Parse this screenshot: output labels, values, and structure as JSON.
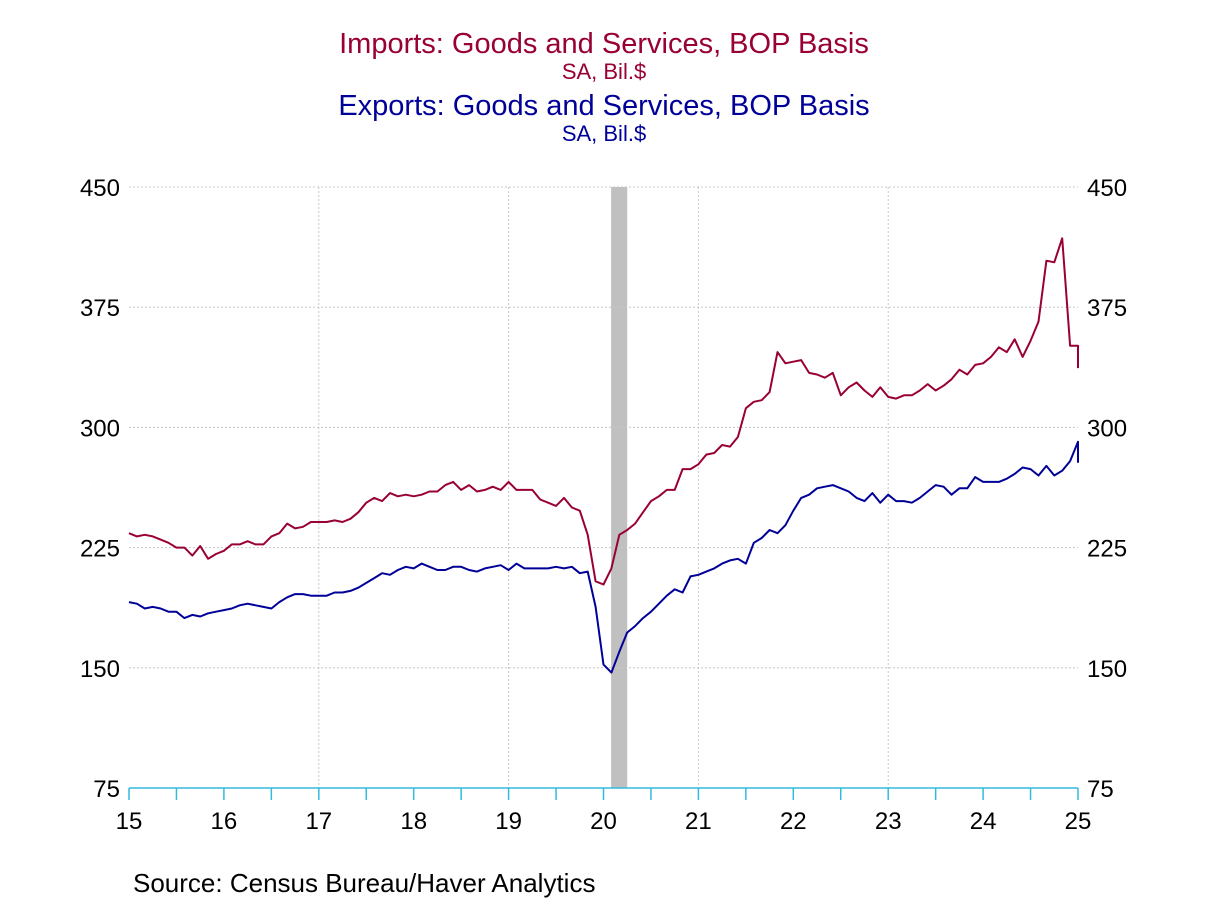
{
  "chart_data": {
    "type": "line",
    "titles": [
      {
        "title": "Imports: Goods and Services, BOP Basis",
        "subtitle": "SA, Bil.$",
        "color": "#990033"
      },
      {
        "title": "Exports: Goods and Services, BOP Basis",
        "subtitle": "SA, Bil.$",
        "color": "#000099"
      }
    ],
    "x_tick_labels": [
      "15",
      "16",
      "17",
      "18",
      "19",
      "20",
      "21",
      "22",
      "23",
      "24",
      "25"
    ],
    "x_start_year": 2015,
    "xlim": [
      2015,
      2025
    ],
    "ylim": [
      75,
      450
    ],
    "y_ticks": [
      75,
      150,
      225,
      300,
      375,
      450
    ],
    "y_tick_labels": [
      "75",
      "150",
      "225",
      "300",
      "375",
      "450"
    ],
    "y_tick_labels_right": [
      "75",
      "150",
      "225",
      "300",
      "375",
      "450"
    ],
    "grid": true,
    "recession_shading": {
      "start": 2020.08,
      "end": 2020.25,
      "color": "#c0c0c0"
    },
    "series": [
      {
        "name": "Imports: Goods and Services, BOP Basis",
        "color": "#990033",
        "frequency": "monthly",
        "start": "2015-01",
        "values": [
          234,
          232,
          233,
          232,
          230,
          228,
          225,
          225,
          220,
          226,
          218,
          221,
          223,
          227,
          227,
          229,
          227,
          227,
          232,
          234,
          240,
          237,
          238,
          241,
          241,
          241,
          242,
          241,
          243,
          247,
          253,
          256,
          254,
          259,
          257,
          258,
          257,
          258,
          260,
          260,
          264,
          266,
          261,
          264,
          260,
          261,
          263,
          261,
          266,
          261,
          261,
          261,
          255,
          253,
          251,
          256,
          250,
          248,
          233,
          204,
          202,
          212,
          233,
          236,
          240,
          247,
          254,
          257,
          261,
          261,
          274,
          274,
          277,
          283,
          284,
          289,
          288,
          294,
          312,
          316,
          317,
          322,
          347,
          340,
          341,
          342,
          334,
          333,
          331,
          334,
          320,
          325,
          328,
          323,
          319,
          325,
          319,
          318,
          320,
          320,
          323,
          327,
          323,
          326,
          330,
          336,
          333,
          339,
          340,
          344,
          350,
          347,
          355,
          344,
          354,
          366,
          404,
          403,
          418,
          351,
          351,
          337
        ]
      },
      {
        "name": "Exports: Goods and Services, BOP Basis",
        "color": "#000099",
        "frequency": "monthly",
        "start": "2015-01",
        "values": [
          191,
          190,
          187,
          188,
          187,
          185,
          185,
          181,
          183,
          182,
          184,
          185,
          186,
          187,
          189,
          190,
          189,
          188,
          187,
          191,
          194,
          196,
          196,
          195,
          195,
          195,
          197,
          197,
          198,
          200,
          203,
          206,
          209,
          208,
          211,
          213,
          212,
          215,
          213,
          211,
          211,
          213,
          213,
          211,
          210,
          212,
          213,
          214,
          211,
          215,
          212,
          212,
          212,
          212,
          213,
          212,
          213,
          209,
          210,
          188,
          152,
          147,
          160,
          172,
          176,
          181,
          185,
          190,
          195,
          199,
          197,
          207,
          208,
          210,
          212,
          215,
          217,
          218,
          215,
          228,
          231,
          236,
          234,
          239,
          248,
          256,
          258,
          262,
          263,
          264,
          262,
          260,
          256,
          254,
          259,
          253,
          258,
          254,
          254,
          253,
          256,
          260,
          264,
          263,
          258,
          262,
          262,
          269,
          266,
          266,
          266,
          268,
          271,
          275,
          274,
          270,
          276,
          270,
          273,
          279,
          291,
          279,
          278
        ]
      }
    ]
  },
  "source_text": "Source:  Census Bureau/Haver Analytics"
}
